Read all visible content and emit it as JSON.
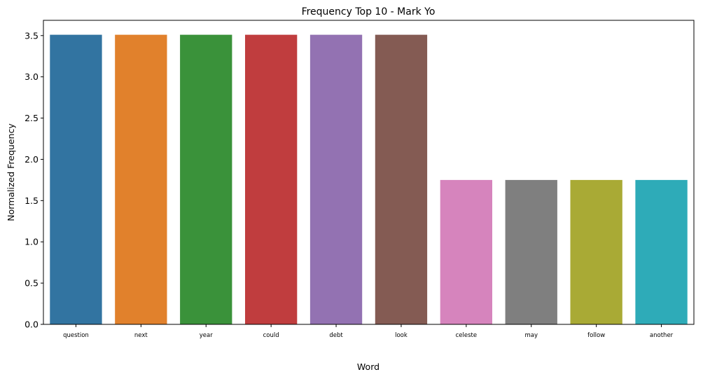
{
  "chart_data": {
    "type": "bar",
    "title": "Frequency Top 10 - Mark Yo",
    "xlabel": "Word",
    "ylabel": "Normalized Frequency",
    "categories": [
      "question",
      "next",
      "year",
      "could",
      "debt",
      "look",
      "celeste",
      "may",
      "follow",
      "another"
    ],
    "values": [
      3.51,
      3.51,
      3.51,
      3.51,
      3.51,
      3.51,
      1.75,
      1.75,
      1.75,
      1.75
    ],
    "colors": [
      "#3274a1",
      "#e1812c",
      "#3a923a",
      "#c03d3e",
      "#9372b2",
      "#845b53",
      "#d684bd",
      "#7f7f7f",
      "#a9aa35",
      "#2eabb8"
    ],
    "yticks": [
      0.0,
      0.5,
      1.0,
      1.5,
      2.0,
      2.5,
      3.0,
      3.5
    ],
    "ytick_labels": [
      "0.0",
      "0.5",
      "1.0",
      "1.5",
      "2.0",
      "2.5",
      "3.0",
      "3.5"
    ],
    "ylim": [
      0,
      3.685
    ],
    "grid": false,
    "legend": "none"
  }
}
